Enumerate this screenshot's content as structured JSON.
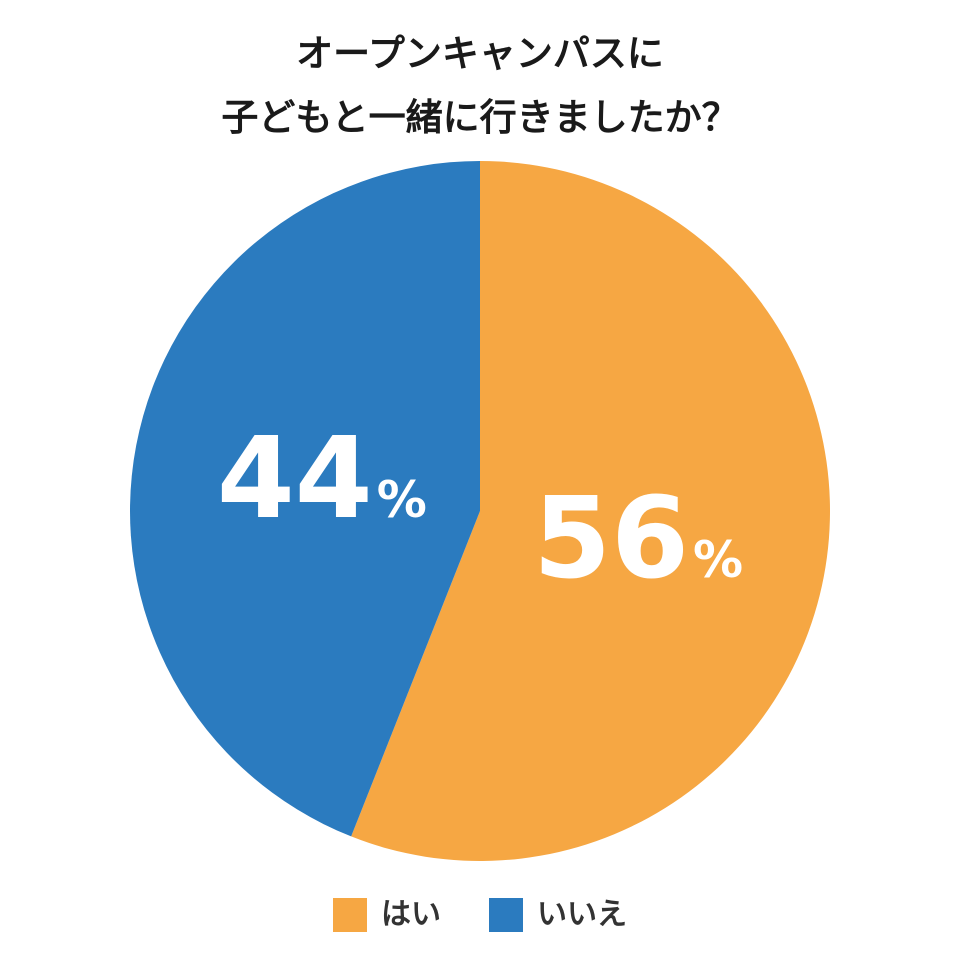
{
  "chart_data": {
    "type": "pie",
    "title_lines": [
      "オープンキャンパスに",
      "子どもと一緒に行きましたか？"
    ],
    "slices": [
      {
        "label": "はい",
        "value": 56,
        "display": "56",
        "unit": "%",
        "color": "#F6A743"
      },
      {
        "label": "いいえ",
        "value": 44,
        "display": "44",
        "unit": "%",
        "color": "#2B7BBF"
      }
    ],
    "start": "12 o'clock",
    "direction": "clockwise",
    "legend_placement": "bottom-center"
  }
}
